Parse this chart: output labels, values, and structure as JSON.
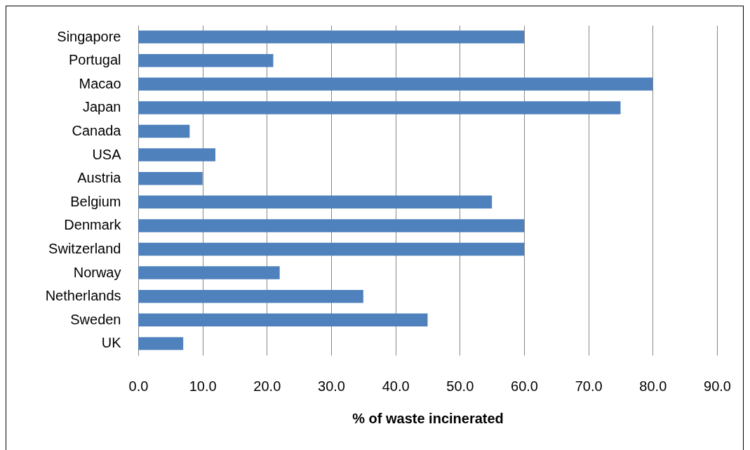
{
  "chart_data": {
    "type": "bar",
    "orientation": "horizontal",
    "xlabel": "% of waste incinerated",
    "categories": [
      "Singapore",
      "Portugal",
      "Macao",
      "Japan",
      "Canada",
      "USA",
      "Austria",
      "Belgium",
      "Denmark",
      "Switzerland",
      "Norway",
      "Netherlands",
      "Sweden",
      "UK"
    ],
    "values": [
      60,
      21,
      80,
      75,
      8,
      12,
      10,
      55,
      60,
      60,
      22,
      35,
      45,
      7
    ],
    "color": "#4f81bd",
    "xlim": [
      0,
      90
    ],
    "xticks": [
      {
        "value": 0,
        "label": "0.0"
      },
      {
        "value": 10,
        "label": "10.0"
      },
      {
        "value": 20,
        "label": "20.0"
      },
      {
        "value": 30,
        "label": "30.0"
      },
      {
        "value": 40,
        "label": "40.0"
      },
      {
        "value": 50,
        "label": "50.0"
      },
      {
        "value": 60,
        "label": "60.0"
      },
      {
        "value": 70,
        "label": "70.0"
      },
      {
        "value": 80,
        "label": "80.0"
      },
      {
        "value": 90,
        "label": "90.0"
      }
    ],
    "grid": "x"
  }
}
